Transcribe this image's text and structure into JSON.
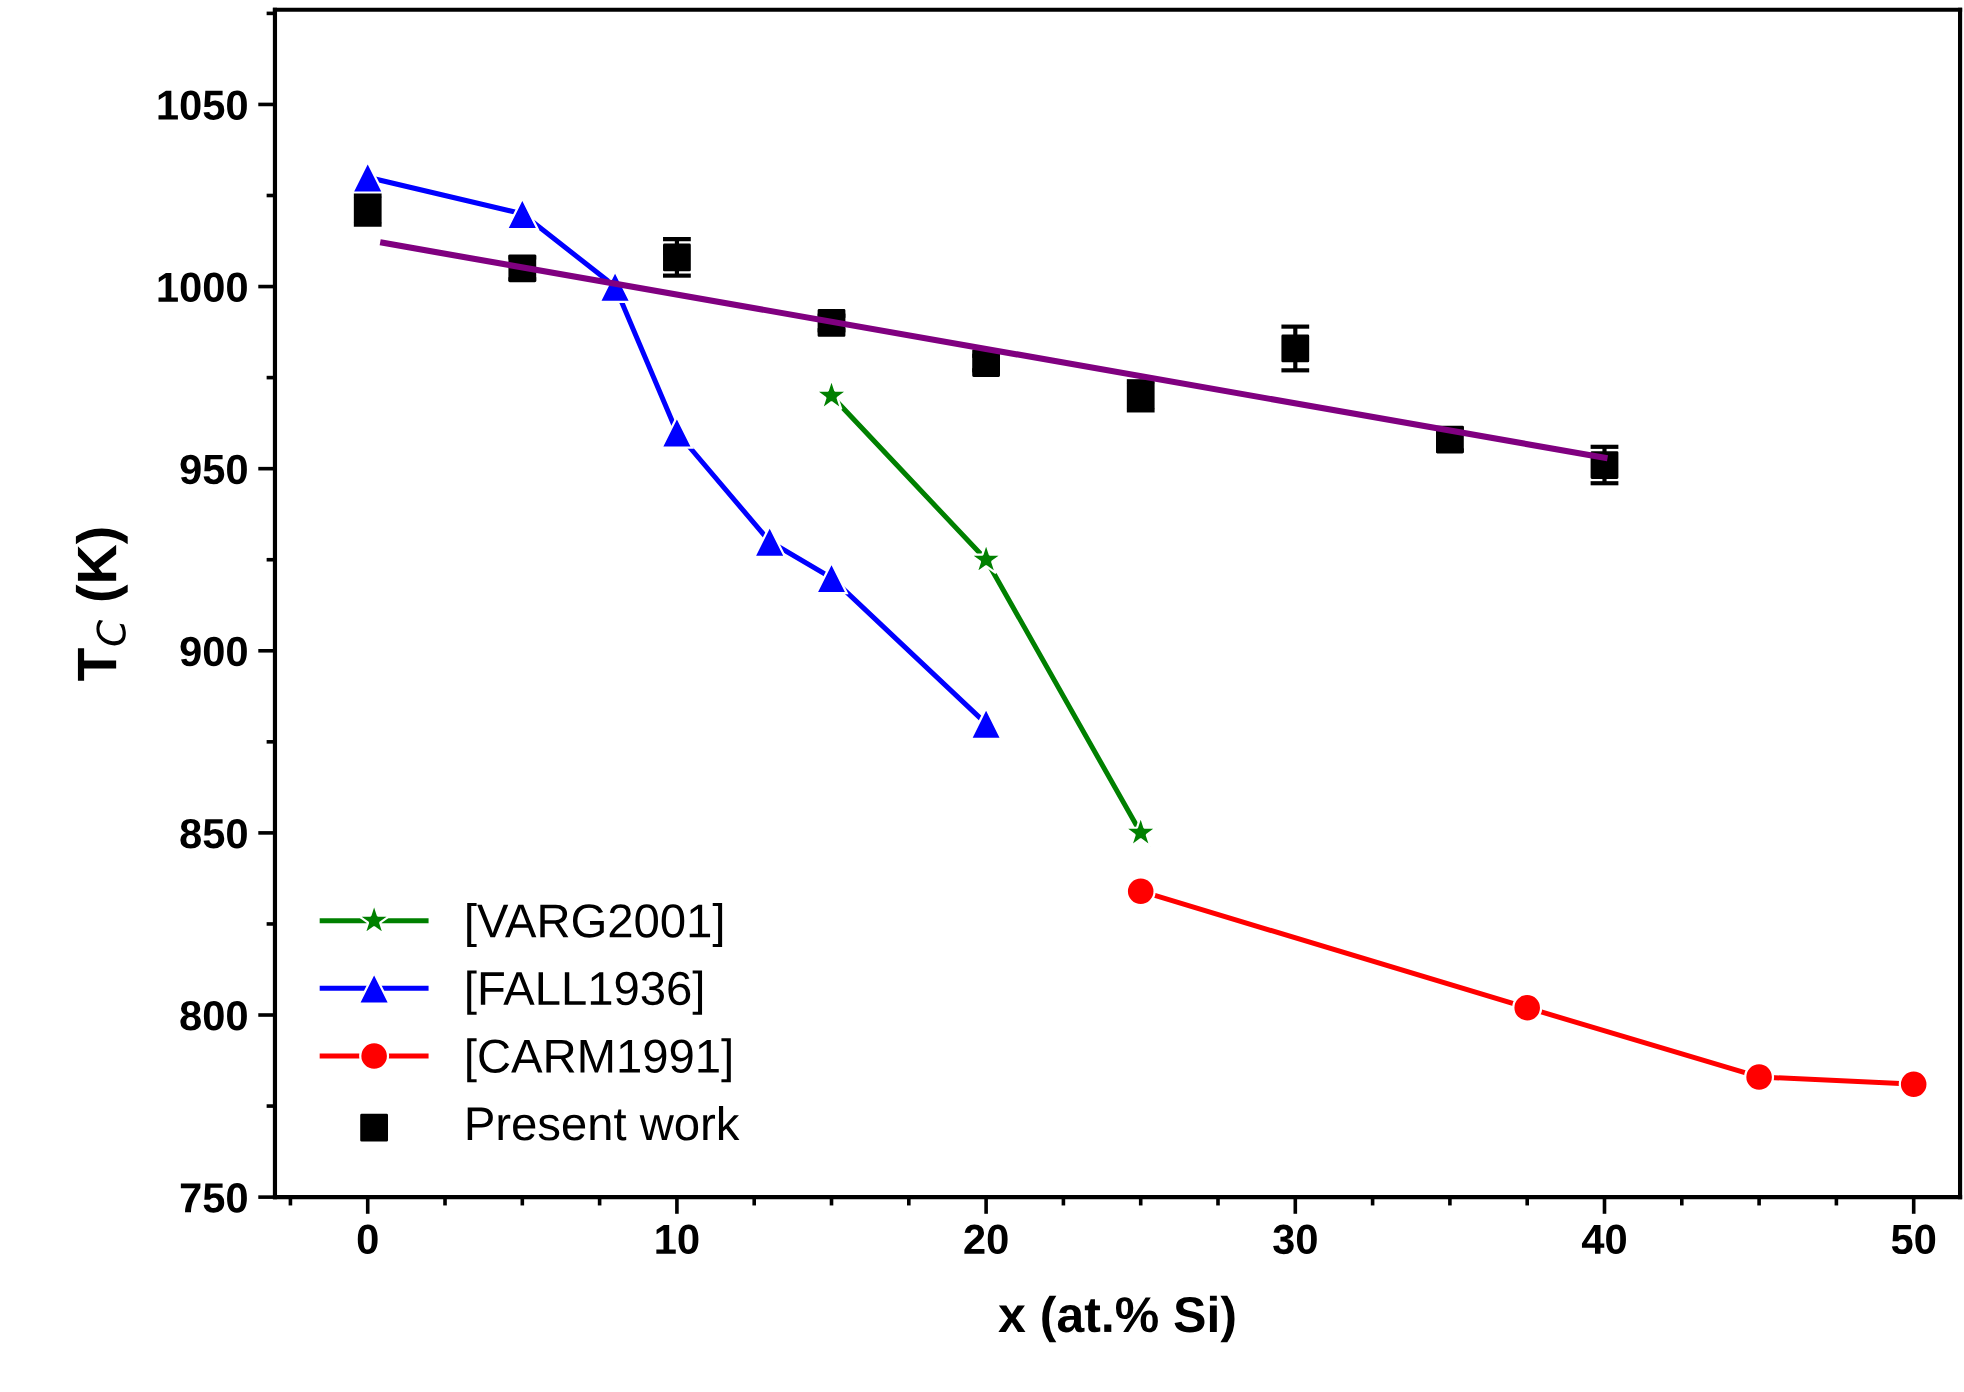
{
  "chart_data": {
    "type": "line",
    "xlabel": "x (at.% Si)",
    "ylabel": "T$_{C}$ (K)",
    "xlim": [
      -3,
      51.5
    ],
    "ylim": [
      750,
      1076
    ],
    "xticks": [
      0,
      10,
      20,
      30,
      40,
      50
    ],
    "yticks": [
      750,
      800,
      850,
      900,
      950,
      1000,
      1050
    ],
    "grid": false,
    "legend": "bottom left",
    "series": [
      {
        "name": "[VARG2001]",
        "marker": "star",
        "color": "#008000",
        "x": [
          15,
          20,
          25
        ],
        "values": [
          970,
          925,
          850
        ]
      },
      {
        "name": "[FALL1936]",
        "marker": "triangle",
        "color": "#0000ff",
        "x": [
          0,
          5,
          8,
          10,
          13,
          15,
          20
        ],
        "values": [
          1030,
          1020,
          1000,
          960,
          930,
          920,
          880
        ]
      },
      {
        "name": "[CARM1991]",
        "marker": "circle",
        "color": "#ff0000",
        "x": [
          25,
          37.5,
          45,
          50
        ],
        "values": [
          834,
          802,
          783,
          781
        ]
      },
      {
        "name": "Present work",
        "type": "scatter",
        "marker": "square",
        "color": "#000000",
        "x": [
          0,
          5,
          10,
          15,
          20,
          25,
          30,
          35,
          40
        ],
        "values": [
          1021,
          1005,
          1008,
          990,
          979,
          970,
          983,
          958,
          951
        ],
        "errors": [
          4,
          3,
          5,
          2,
          2,
          4,
          6,
          3,
          5
        ]
      },
      {
        "marker": "none",
        "color": "#800080",
        "x": [
          0.5,
          40
        ],
        "values": [
          1012,
          953
        ]
      }
    ]
  }
}
